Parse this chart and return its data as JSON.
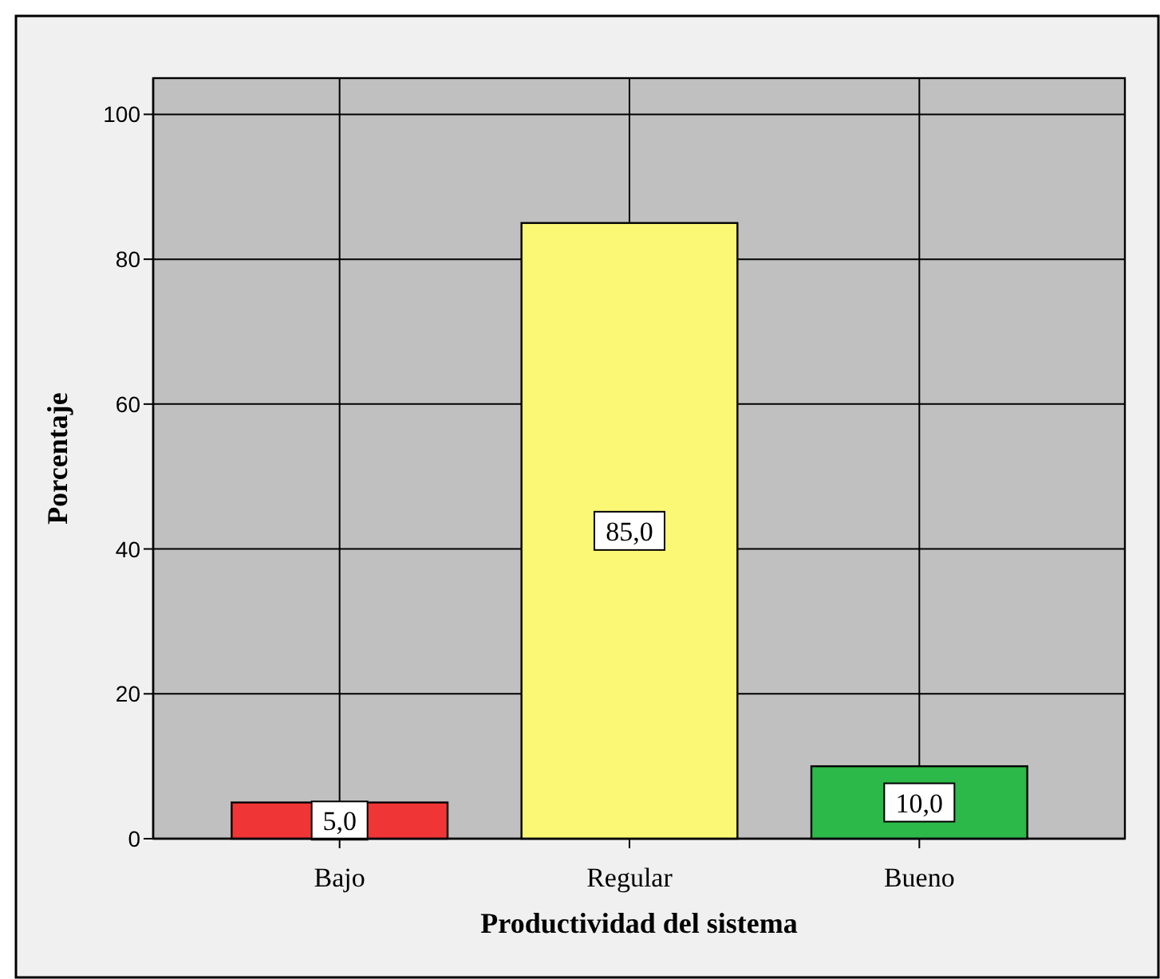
{
  "chart_data": {
    "type": "bar",
    "categories": [
      "Bajo",
      "Regular",
      "Bueno"
    ],
    "values": [
      5.0,
      85.0,
      10.0
    ],
    "colors": [
      "#ef3535",
      "#fbf876",
      "#2db84a"
    ],
    "value_labels": [
      "5,0",
      "85,0",
      "10,0"
    ],
    "xlabel": "Productividad del sistema",
    "ylabel": "Porcentaje",
    "ylim": [
      0,
      105
    ],
    "yticks": [
      0,
      20,
      40,
      60,
      80,
      100
    ],
    "grid": true
  }
}
